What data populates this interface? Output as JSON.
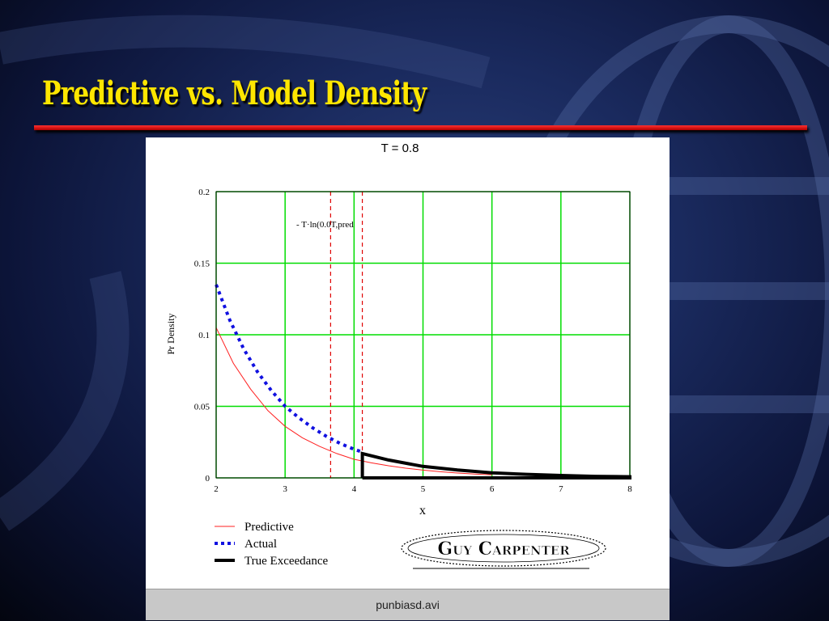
{
  "slide": {
    "title": "Predictive vs. Model Density",
    "colors": {
      "title": "#ffe600",
      "rule": "#e01010",
      "background": "#1a2a5e"
    }
  },
  "chart_data": {
    "type": "line",
    "title": "T = 0.8",
    "xlabel": "x",
    "ylabel": "Pr Density",
    "xlim": [
      2,
      8
    ],
    "ylim": [
      0,
      0.2
    ],
    "x_ticks": [
      "2",
      "3",
      "4",
      "5",
      "6",
      "7",
      "8"
    ],
    "y_ticks": [
      "0",
      "0.05",
      "0.1",
      "0.15",
      "0.2"
    ],
    "grid": true,
    "grid_color": "#00dd00",
    "legend_position": "bottom-left",
    "annotation": "- T·ln(0.0T,pred",
    "vertical_lines": [
      3.66,
      4.12
    ],
    "vertical_line_color": "#e00000",
    "series": [
      {
        "name": "Predictive",
        "style": "solid-thin",
        "color": "#ff2020",
        "x": [
          2,
          2.25,
          2.5,
          2.75,
          3,
          3.25,
          3.5,
          3.75,
          4,
          4.25,
          4.5,
          4.75,
          5,
          5.25,
          5.5,
          5.75,
          6
        ],
        "y": [
          0.105,
          0.08,
          0.062,
          0.047,
          0.036,
          0.028,
          0.022,
          0.017,
          0.013,
          0.0105,
          0.0085,
          0.0068,
          0.0054,
          0.0043,
          0.0034,
          0.0027,
          0.0021
        ]
      },
      {
        "name": "Actual",
        "style": "dotted",
        "color": "#1010e0",
        "x": [
          2,
          2.2,
          2.4,
          2.6,
          2.8,
          3,
          3.2,
          3.4,
          3.6,
          3.8,
          4,
          4.12
        ],
        "y": [
          0.135,
          0.11,
          0.09,
          0.074,
          0.061,
          0.05,
          0.042,
          0.035,
          0.029,
          0.024,
          0.02,
          0.018
        ]
      },
      {
        "name": "True Exceedance",
        "style": "solid-thick",
        "color": "#000000",
        "x": [
          4.12,
          4.12,
          4.5,
          5,
          5.5,
          6,
          6.5,
          7,
          7.5,
          8,
          8,
          4.12
        ],
        "y": [
          0,
          0.017,
          0.0125,
          0.008,
          0.0055,
          0.0035,
          0.0025,
          0.0017,
          0.0011,
          0.0008,
          0,
          0
        ]
      }
    ]
  },
  "logo": {
    "text": "Guy Carpenter"
  },
  "status_bar": {
    "text": "punbiasd.avi"
  }
}
